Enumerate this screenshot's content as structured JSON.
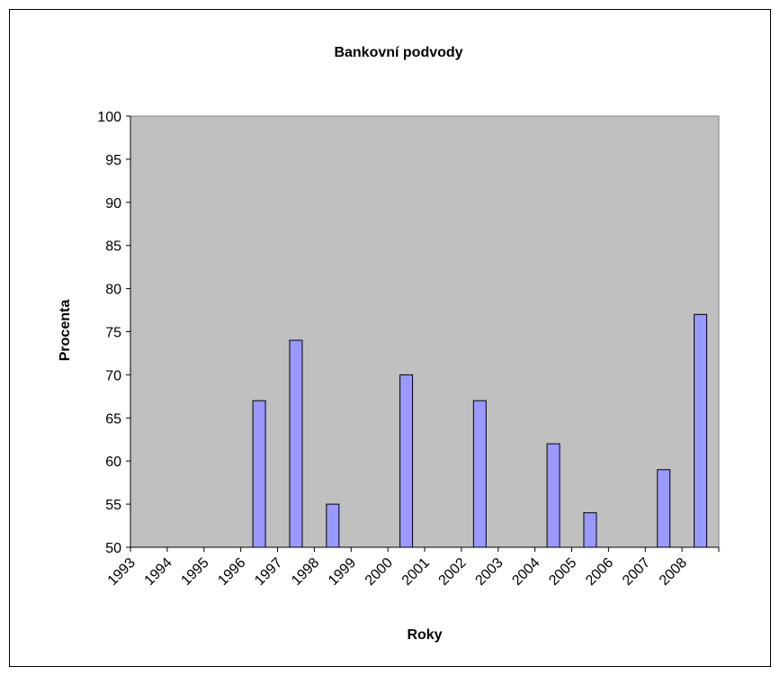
{
  "chart_data": {
    "type": "bar",
    "title": "Bankovní podvody",
    "xlabel": "Roky",
    "ylabel": "Procenta",
    "ylim": [
      50,
      100
    ],
    "ytick_step": 5,
    "categories": [
      "1993",
      "1994",
      "1995",
      "1996",
      "1997",
      "1998",
      "1999",
      "2000",
      "2001",
      "2002",
      "2003",
      "2004",
      "2005",
      "2006",
      "2007",
      "2008"
    ],
    "values": [
      null,
      null,
      null,
      67,
      74,
      55,
      null,
      70,
      null,
      67,
      null,
      62,
      54,
      null,
      59,
      77
    ],
    "colors": {
      "plot_bg": "#c0c0c0",
      "bar_fill": "#9999ff",
      "bar_stroke": "#000000",
      "axis": "#000000"
    },
    "grid": false,
    "legend": "none"
  }
}
